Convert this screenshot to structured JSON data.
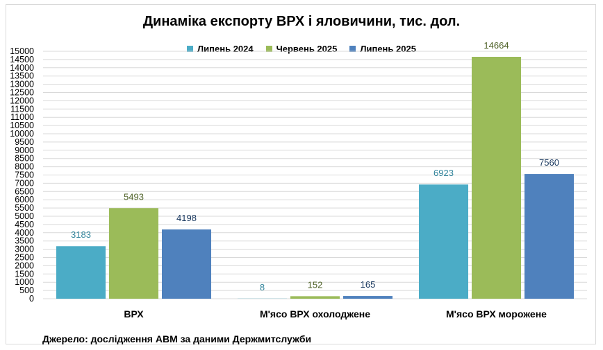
{
  "chart_data": {
    "type": "bar",
    "title": "Динаміка експорту ВРХ і яловичини, тис. дол.",
    "categories": [
      "ВРХ",
      "М'ясо ВРХ охолоджене",
      "М'ясо ВРХ морожене"
    ],
    "series": [
      {
        "name": "Липень 2024",
        "values": [
          3183,
          8,
          6923
        ],
        "color": "#4bacc6",
        "label_color": "#31849b"
      },
      {
        "name": "Червень 2025",
        "values": [
          5493,
          152,
          14664
        ],
        "color": "#9bbb59",
        "label_color": "#4f6228"
      },
      {
        "name": "Липень 2025",
        "values": [
          4198,
          165,
          7560
        ],
        "color": "#4f81bd",
        "label_color": "#17365d"
      }
    ],
    "ylim": [
      0,
      15000
    ],
    "ytick_step": 500,
    "grid": true,
    "legend_position": "top"
  },
  "source": "Джерело: дослідження АВМ за даними Держмитслужби"
}
